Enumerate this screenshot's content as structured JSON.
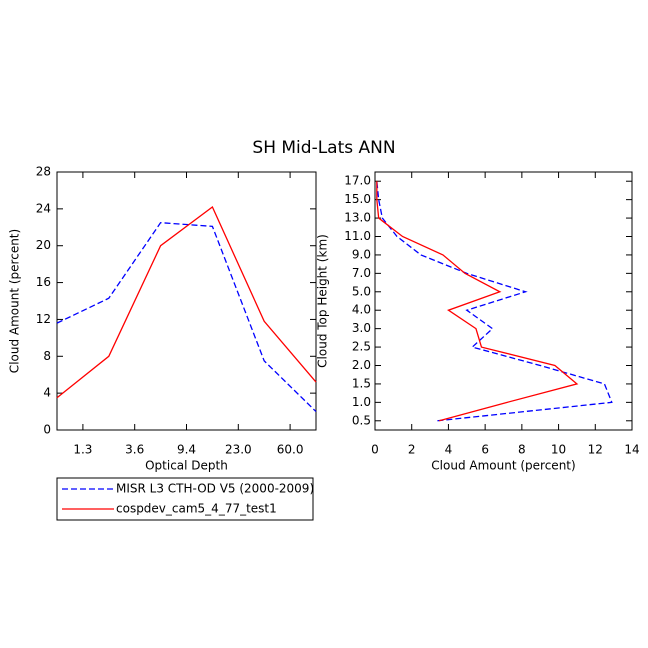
{
  "title": "SH Mid-Lats ANN",
  "chart_data": [
    {
      "type": "line",
      "xlabel": "Optical Depth",
      "ylabel": "Cloud Amount (percent)",
      "x": [
        0,
        1,
        2,
        3,
        4,
        5
      ],
      "xlim": [
        0,
        5
      ],
      "xticks": [
        {
          "value": 0.5,
          "label": "1.3"
        },
        {
          "value": 1.5,
          "label": "3.6"
        },
        {
          "value": 2.5,
          "label": "9.4"
        },
        {
          "value": 3.5,
          "label": "23.0"
        },
        {
          "value": 4.5,
          "label": "60.0"
        }
      ],
      "ylim": [
        0,
        28
      ],
      "yticks": [
        0,
        4,
        8,
        12,
        16,
        20,
        24,
        28
      ],
      "series": [
        {
          "name": "MISR L3 CTH-OD V5 (2000-2009)",
          "color": "#0000ff",
          "dashed": true,
          "values": [
            11.6,
            14.3,
            22.5,
            22.1,
            7.5,
            2.0
          ]
        },
        {
          "name": "cospdev_cam5_4_77_test1",
          "color": "#ff0000",
          "dashed": false,
          "values": [
            3.5,
            8.0,
            20.0,
            24.2,
            11.8,
            5.2
          ]
        }
      ]
    },
    {
      "type": "profile",
      "xlabel": "Cloud Amount (percent)",
      "ylabel": "Cloud Top Height (km)",
      "categories": [
        "0.5",
        "1.0",
        "1.5",
        "2.0",
        "2.5",
        "3.0",
        "4.0",
        "5.0",
        "7.0",
        "9.0",
        "11.0",
        "13.0",
        "15.0",
        "17.0"
      ],
      "xlim": [
        0,
        14
      ],
      "xticks": [
        0,
        2,
        4,
        6,
        8,
        10,
        12,
        14
      ],
      "series": [
        {
          "color": "#0000ff",
          "dashed": true,
          "values": [
            3.4,
            12.9,
            12.5,
            9.0,
            5.3,
            6.4,
            5.0,
            8.2,
            5.0,
            2.5,
            1.2,
            0.4,
            0.2,
            0.1
          ]
        },
        {
          "color": "#ff0000",
          "dashed": false,
          "values": [
            3.5,
            7.2,
            11.0,
            9.8,
            5.8,
            5.5,
            4.0,
            6.8,
            4.9,
            3.7,
            1.5,
            0.2,
            0.1,
            0.1
          ]
        }
      ]
    }
  ]
}
